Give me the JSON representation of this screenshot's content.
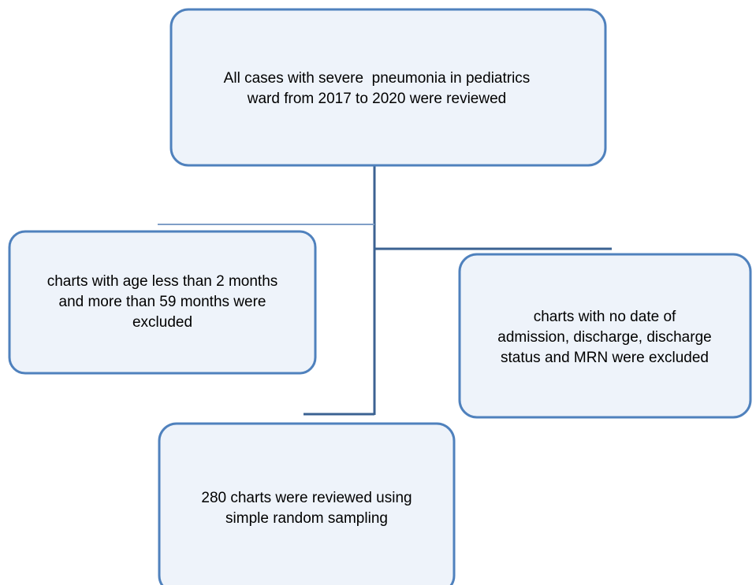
{
  "nodes": [
    {
      "lines": [
        "All cases with severe  pneumonia in pediatrics",
        "ward from 2017 to 2020 were reviewed"
      ]
    },
    {
      "lines": [
        "charts with age less than 2 months",
        "and more than 59 months were",
        "excluded"
      ]
    },
    {
      "lines": [
        "charts with no date of",
        "admission, discharge, discharge",
        "status and MRN were excluded"
      ]
    },
    {
      "lines": [
        "280 charts were reviewed using",
        "simple random sampling"
      ]
    }
  ]
}
